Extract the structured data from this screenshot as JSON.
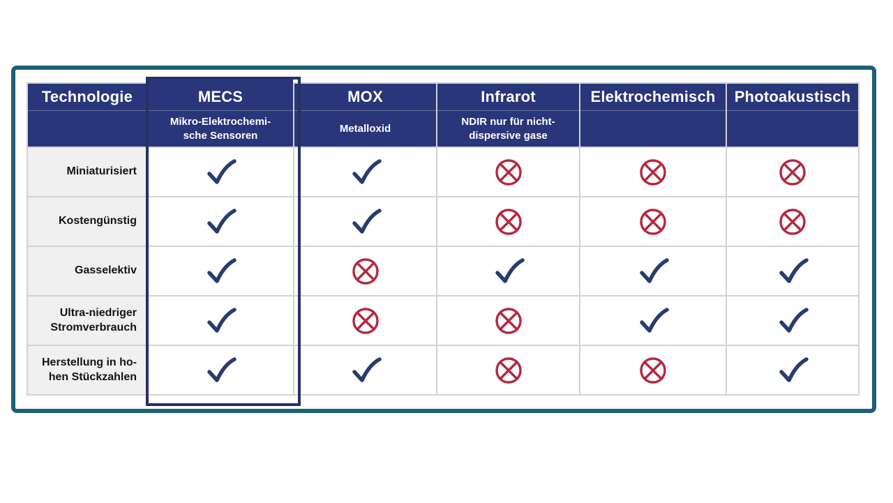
{
  "table": {
    "corner_label": "Technologie",
    "columns": [
      {
        "id": "mecs",
        "label": "MECS",
        "sublabel": "Mikro-Elektrochemi-\nsche Sensoren",
        "highlighted": true
      },
      {
        "id": "mox",
        "label": "MOX",
        "sublabel": "Metalloxid",
        "highlighted": false
      },
      {
        "id": "infrarot",
        "label": "Infrarot",
        "sublabel": "NDIR nur für nicht-\ndispersive gase",
        "highlighted": false
      },
      {
        "id": "elektrochemisch",
        "label": "Elektrochemisch",
        "sublabel": "",
        "highlighted": false
      },
      {
        "id": "photoakustisch",
        "label": "Photoakustisch",
        "sublabel": "",
        "highlighted": false
      }
    ],
    "rows": [
      {
        "label": "Miniaturisiert",
        "values": [
          "yes",
          "yes",
          "no",
          "no",
          "no"
        ]
      },
      {
        "label": "Kostengünstig",
        "values": [
          "yes",
          "yes",
          "no",
          "no",
          "no"
        ]
      },
      {
        "label": "Gasselektiv",
        "values": [
          "yes",
          "no",
          "yes",
          "yes",
          "yes"
        ]
      },
      {
        "label": "Ultra-niedriger\nStromverbrauch",
        "values": [
          "yes",
          "no",
          "no",
          "yes",
          "yes"
        ]
      },
      {
        "label": "Herstellung in ho-\nhen Stückzahlen",
        "values": [
          "yes",
          "yes",
          "no",
          "no",
          "yes"
        ]
      }
    ]
  },
  "icons": {
    "check_name": "check-icon",
    "cross_name": "cross-x-icon"
  },
  "colors": {
    "header_bg": "#293679",
    "check": "#2a3b6e",
    "cross": "#b4273f",
    "frame": "#1d6073",
    "highlight_border": "#253264",
    "row_label_bg": "#f0f0f1"
  },
  "chart_data": {
    "type": "table",
    "title": "",
    "corner_label": "Technologie",
    "columns": [
      "MECS",
      "MOX",
      "Infrarot",
      "Elektrochemisch",
      "Photoakustisch"
    ],
    "column_subtitles": [
      "Mikro-Elektrochemische Sensoren",
      "Metalloxid",
      "NDIR nur für nicht-dispersive gase",
      "",
      ""
    ],
    "highlighted_column": "MECS",
    "rows": [
      "Miniaturisiert",
      "Kostengünstig",
      "Gasselektiv",
      "Ultra-niedriger Stromverbrauch",
      "Herstellung in hohen Stückzahlen"
    ],
    "values": [
      [
        true,
        true,
        false,
        false,
        false
      ],
      [
        true,
        true,
        false,
        false,
        false
      ],
      [
        true,
        false,
        true,
        true,
        true
      ],
      [
        true,
        false,
        false,
        true,
        true
      ],
      [
        true,
        true,
        false,
        false,
        true
      ]
    ],
    "value_encoding": {
      "true": "blue check mark",
      "false": "red circled X"
    }
  }
}
